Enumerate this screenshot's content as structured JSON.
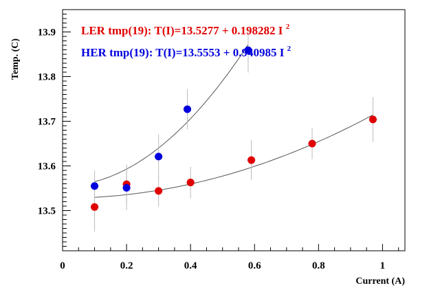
{
  "chart_data": {
    "type": "scatter",
    "xlabel": "Current (A)",
    "ylabel": "Temp. (C)",
    "xlim": [
      0,
      1.07
    ],
    "ylim": [
      13.41,
      13.95
    ],
    "x_ticks": [
      {
        "value": 0,
        "label": "0"
      },
      {
        "value": 0.2,
        "label": "0.2"
      },
      {
        "value": 0.4,
        "label": "0.4"
      },
      {
        "value": 0.6,
        "label": "0.6"
      },
      {
        "value": 0.8,
        "label": "0.8"
      },
      {
        "value": 1,
        "label": "1"
      }
    ],
    "y_ticks": [
      {
        "value": 13.5,
        "label": "13.5"
      },
      {
        "value": 13.6,
        "label": "13.6"
      },
      {
        "value": 13.7,
        "label": "13.7"
      },
      {
        "value": 13.8,
        "label": "13.8"
      },
      {
        "value": 13.9,
        "label": "13.9"
      }
    ],
    "series": [
      {
        "name": "LER",
        "legend": "LER tmp(19): T(I)=13.5277 + 0.198282 I",
        "legend_sup": "2",
        "color": "#e00000",
        "fit": {
          "a": 13.5277,
          "b": 0.198282,
          "x_from": 0.1,
          "x_to": 0.97
        },
        "points": [
          {
            "x": 0.1,
            "y": 13.508,
            "err": 0.055
          },
          {
            "x": 0.2,
            "y": 13.559,
            "err": 0.045
          },
          {
            "x": 0.3,
            "y": 13.544,
            "err": 0.035
          },
          {
            "x": 0.4,
            "y": 13.563,
            "err": 0.035
          },
          {
            "x": 0.59,
            "y": 13.613,
            "err": 0.045
          },
          {
            "x": 0.78,
            "y": 13.65,
            "err": 0.035
          },
          {
            "x": 0.97,
            "y": 13.704,
            "err": 0.05
          }
        ]
      },
      {
        "name": "HER",
        "legend": "HER tmp(19): T(I)=13.5553 + 0.940985 I",
        "legend_sup": "2",
        "color": "#0000dd",
        "fit": {
          "a": 13.5553,
          "b": 0.940985,
          "x_from": 0.1,
          "x_to": 0.58
        },
        "points": [
          {
            "x": 0.1,
            "y": 13.555,
            "err": 0.035
          },
          {
            "x": 0.2,
            "y": 13.551,
            "err": 0.05
          },
          {
            "x": 0.3,
            "y": 13.621,
            "err": 0.05
          },
          {
            "x": 0.39,
            "y": 13.727,
            "err": 0.045
          },
          {
            "x": 0.58,
            "y": 13.859,
            "err": 0.05
          }
        ]
      }
    ]
  }
}
